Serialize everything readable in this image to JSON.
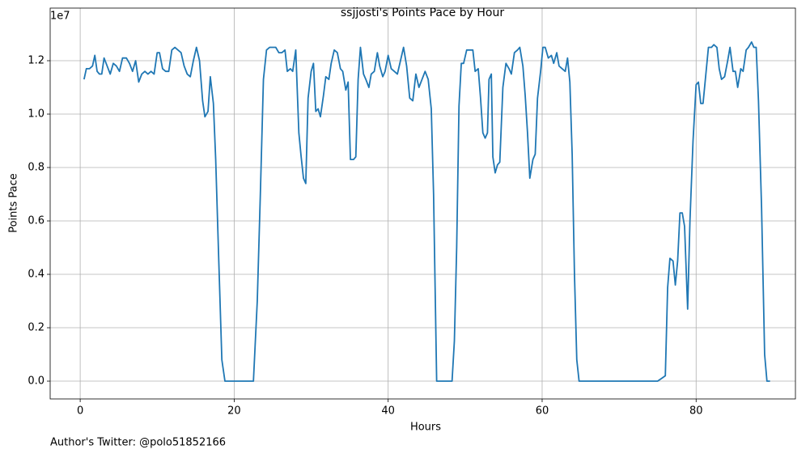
{
  "chart_data": {
    "type": "line",
    "title": "ssjjosti's Points Pace by Hour",
    "xlabel": "Hours",
    "ylabel": "Points Pace",
    "y_offset_label": "1e7",
    "footer": "Author's Twitter: @polo51852166",
    "color": "#1f77b4",
    "grid": true,
    "xlim": [
      -3.9,
      92.9
    ],
    "ylim": [
      -666000,
      13970000
    ],
    "xticks": [
      0,
      20,
      40,
      60,
      80
    ],
    "yticks": [
      {
        "value": 0,
        "label": "0.0"
      },
      {
        "value": 2000000,
        "label": "0.2"
      },
      {
        "value": 4000000,
        "label": "0.4"
      },
      {
        "value": 6000000,
        "label": "0.6"
      },
      {
        "value": 8000000,
        "label": "0.8"
      },
      {
        "value": 10000000,
        "label": "1.0"
      },
      {
        "value": 12000000,
        "label": "1.2"
      }
    ],
    "x": [
      0.5,
      0.8,
      1.2,
      1.6,
      1.9,
      2.2,
      2.5,
      2.8,
      3.1,
      3.5,
      3.9,
      4.3,
      4.7,
      5.1,
      5.5,
      6.0,
      6.4,
      6.8,
      7.2,
      7.6,
      8.0,
      8.4,
      8.8,
      9.2,
      9.6,
      10.0,
      10.3,
      10.7,
      11.1,
      11.5,
      11.9,
      12.3,
      12.7,
      13.1,
      13.5,
      13.9,
      14.3,
      14.7,
      15.1,
      15.5,
      15.9,
      16.2,
      16.6,
      16.9,
      17.3,
      17.6,
      18.0,
      18.4,
      18.8,
      22.5,
      23.0,
      23.4,
      23.8,
      24.2,
      24.6,
      25.0,
      25.4,
      25.8,
      26.2,
      26.6,
      26.9,
      27.3,
      27.6,
      28.0,
      28.4,
      28.7,
      29.0,
      29.3,
      29.6,
      30.0,
      30.3,
      30.6,
      30.9,
      31.2,
      31.6,
      31.9,
      32.3,
      32.6,
      33.0,
      33.4,
      33.8,
      34.1,
      34.5,
      34.8,
      35.1,
      35.5,
      35.8,
      36.1,
      36.4,
      36.8,
      37.1,
      37.5,
      37.8,
      38.2,
      38.6,
      38.9,
      39.3,
      39.6,
      40.0,
      40.4,
      40.8,
      41.2,
      41.6,
      42.0,
      42.4,
      42.8,
      43.2,
      43.6,
      44.0,
      44.4,
      44.8,
      45.2,
      45.6,
      45.9,
      46.1,
      46.3,
      48.3,
      48.6,
      48.9,
      49.2,
      49.5,
      49.8,
      50.2,
      50.6,
      51.0,
      51.3,
      51.7,
      52.0,
      52.3,
      52.6,
      52.9,
      53.1,
      53.4,
      53.6,
      53.9,
      54.2,
      54.5,
      54.9,
      55.3,
      55.7,
      56.0,
      56.4,
      56.8,
      57.1,
      57.5,
      57.8,
      58.1,
      58.4,
      58.8,
      59.1,
      59.4,
      59.8,
      60.1,
      60.4,
      60.8,
      61.2,
      61.5,
      61.9,
      62.2,
      62.6,
      63.0,
      63.3,
      63.6,
      63.9,
      64.2,
      64.5,
      64.8,
      75.0,
      75.5,
      76.0,
      76.3,
      76.6,
      77.0,
      77.3,
      77.6,
      77.9,
      78.2,
      78.5,
      78.9,
      79.2,
      79.6,
      80.0,
      80.3,
      80.6,
      80.9,
      81.2,
      81.6,
      82.0,
      82.3,
      82.7,
      83.0,
      83.3,
      83.7,
      84.1,
      84.4,
      84.8,
      85.1,
      85.4,
      85.8,
      86.1,
      86.5,
      86.8,
      87.2,
      87.5,
      87.8,
      88.1,
      88.5,
      88.9,
      89.2,
      89.6
    ],
    "values": [
      11300000,
      11700000,
      11700000,
      11800000,
      12200000,
      11600000,
      11500000,
      11500000,
      12100000,
      11800000,
      11500000,
      11900000,
      11800000,
      11600000,
      12100000,
      12100000,
      11900000,
      11600000,
      12000000,
      11200000,
      11500000,
      11600000,
      11500000,
      11600000,
      11500000,
      12300000,
      12300000,
      11700000,
      11600000,
      11600000,
      12400000,
      12500000,
      12400000,
      12300000,
      11800000,
      11500000,
      11400000,
      12000000,
      12500000,
      12000000,
      10500000,
      9900000,
      10100000,
      11400000,
      10400000,
      8300000,
      4500000,
      800000,
      0,
      0,
      3000000,
      7000000,
      11300000,
      12400000,
      12500000,
      12500000,
      12500000,
      12300000,
      12300000,
      12400000,
      11600000,
      11700000,
      11600000,
      12400000,
      9300000,
      8400000,
      7600000,
      7400000,
      10600000,
      11600000,
      11900000,
      10100000,
      10200000,
      9900000,
      10700000,
      11400000,
      11300000,
      11900000,
      12400000,
      12300000,
      11700000,
      11600000,
      10900000,
      11200000,
      8300000,
      8300000,
      8400000,
      11300000,
      12500000,
      11500000,
      11300000,
      11000000,
      11500000,
      11600000,
      12300000,
      11800000,
      11400000,
      11600000,
      12200000,
      11700000,
      11600000,
      11500000,
      12000000,
      12500000,
      11800000,
      10600000,
      10500000,
      11500000,
      11000000,
      11300000,
      11600000,
      11300000,
      10200000,
      7000000,
      3500000,
      0,
      0,
      1500000,
      5000000,
      10300000,
      11900000,
      11900000,
      12400000,
      12400000,
      12400000,
      11600000,
      11700000,
      10600000,
      9300000,
      9100000,
      9300000,
      11300000,
      11500000,
      8400000,
      7800000,
      8100000,
      8200000,
      11000000,
      11900000,
      11700000,
      11500000,
      12300000,
      12400000,
      12500000,
      11800000,
      10700000,
      9300000,
      7600000,
      8300000,
      8500000,
      10600000,
      11600000,
      12500000,
      12500000,
      12100000,
      12200000,
      11900000,
      12300000,
      11800000,
      11700000,
      11600000,
      12100000,
      11200000,
      8500000,
      4000000,
      800000,
      0,
      0,
      100000,
      200000,
      3500000,
      4600000,
      4500000,
      3600000,
      4500000,
      6300000,
      6300000,
      5800000,
      2700000,
      6000000,
      9000000,
      11100000,
      11200000,
      10400000,
      10400000,
      11300000,
      12500000,
      12500000,
      12600000,
      12500000,
      11700000,
      11300000,
      11400000,
      12000000,
      12500000,
      11600000,
      11600000,
      11000000,
      11700000,
      11600000,
      12400000,
      12500000,
      12700000,
      12500000,
      12500000,
      10500000,
      6500000,
      1000000,
      0,
      0
    ]
  }
}
